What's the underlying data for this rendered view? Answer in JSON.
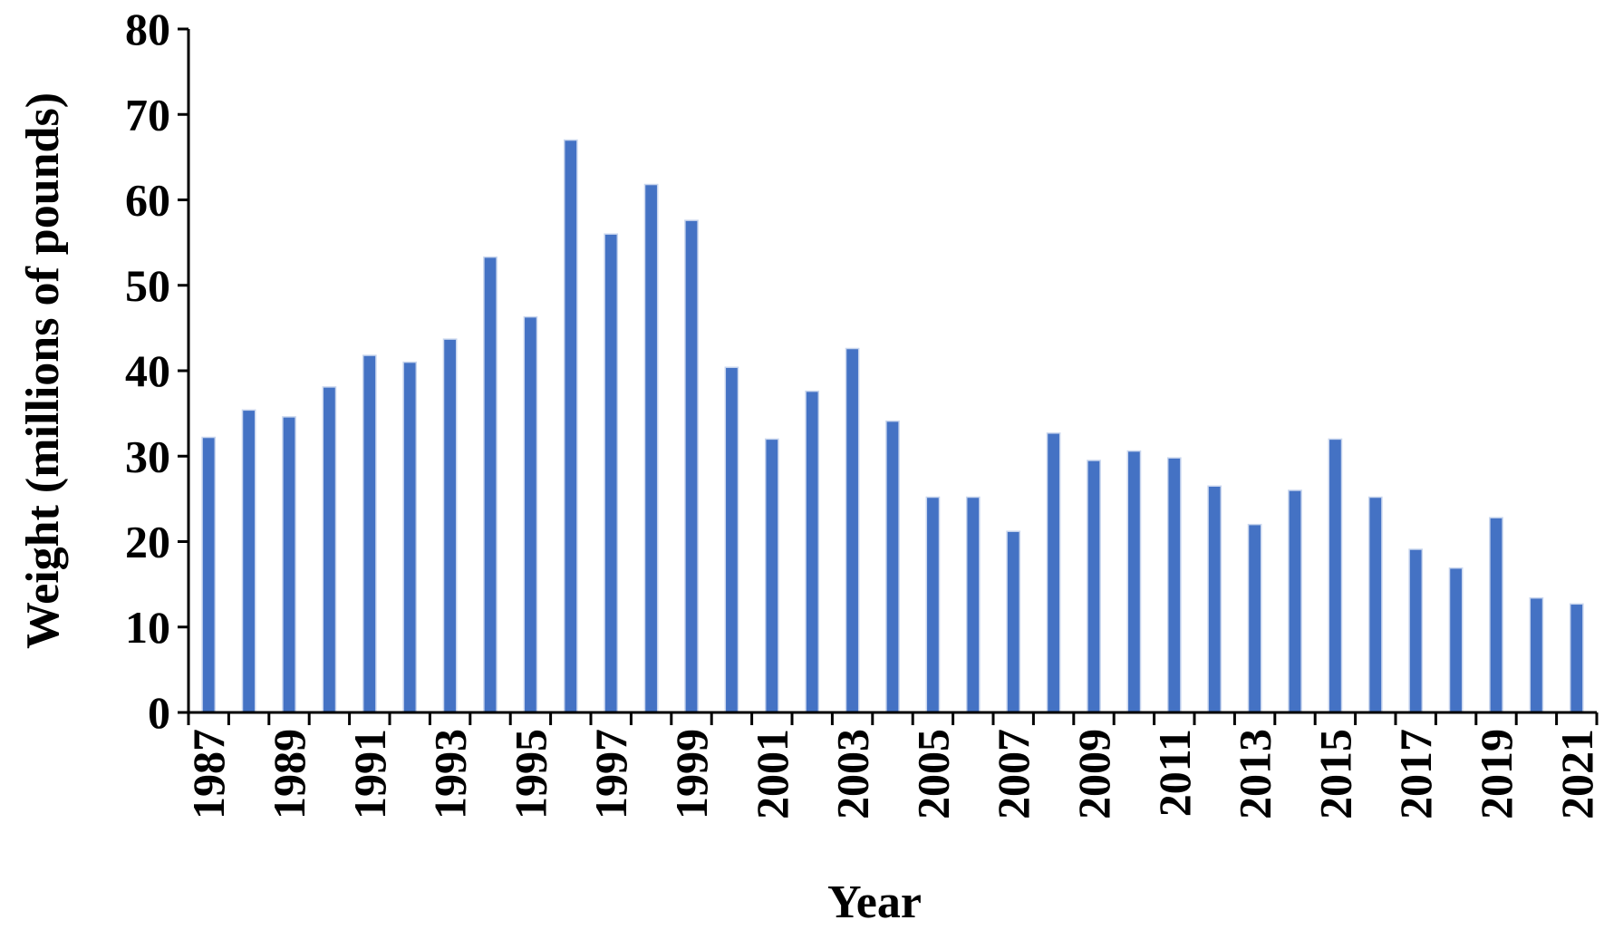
{
  "chart_data": {
    "type": "bar",
    "title": "",
    "xlabel": "Year",
    "ylabel": "Weight (millions of pounds)",
    "ylim": [
      0,
      80
    ],
    "yticks": [
      0,
      10,
      20,
      30,
      40,
      50,
      60,
      70,
      80
    ],
    "grid": false,
    "legend": "none",
    "bar_color": "#4472C4",
    "categories": [
      "1987",
      "1988",
      "1989",
      "1990",
      "1991",
      "1992",
      "1993",
      "1994",
      "1995",
      "1996",
      "1997",
      "1998",
      "1999",
      "2000",
      "2001",
      "2002",
      "2003",
      "2004",
      "2005",
      "2006",
      "2007",
      "2008",
      "2009",
      "2010",
      "2011",
      "2012",
      "2013",
      "2014",
      "2015",
      "2016",
      "2017",
      "2018",
      "2019",
      "2020",
      "2021"
    ],
    "x_tick_labels": [
      "1987",
      "1989",
      "1991",
      "1993",
      "1995",
      "1997",
      "1999",
      "2001",
      "2003",
      "2005",
      "2007",
      "2009",
      "2011",
      "2013",
      "2015",
      "2017",
      "2019",
      "2021"
    ],
    "values": [
      32.2,
      35.4,
      34.6,
      38.1,
      41.8,
      41.0,
      43.7,
      53.3,
      46.3,
      67.0,
      56.0,
      61.8,
      57.6,
      40.4,
      32.0,
      37.6,
      42.6,
      34.1,
      25.2,
      25.2,
      21.2,
      32.7,
      29.5,
      30.6,
      29.8,
      26.5,
      22.0,
      26.0,
      32.0,
      25.2,
      19.1,
      16.9,
      22.8,
      13.4,
      12.7
    ]
  }
}
